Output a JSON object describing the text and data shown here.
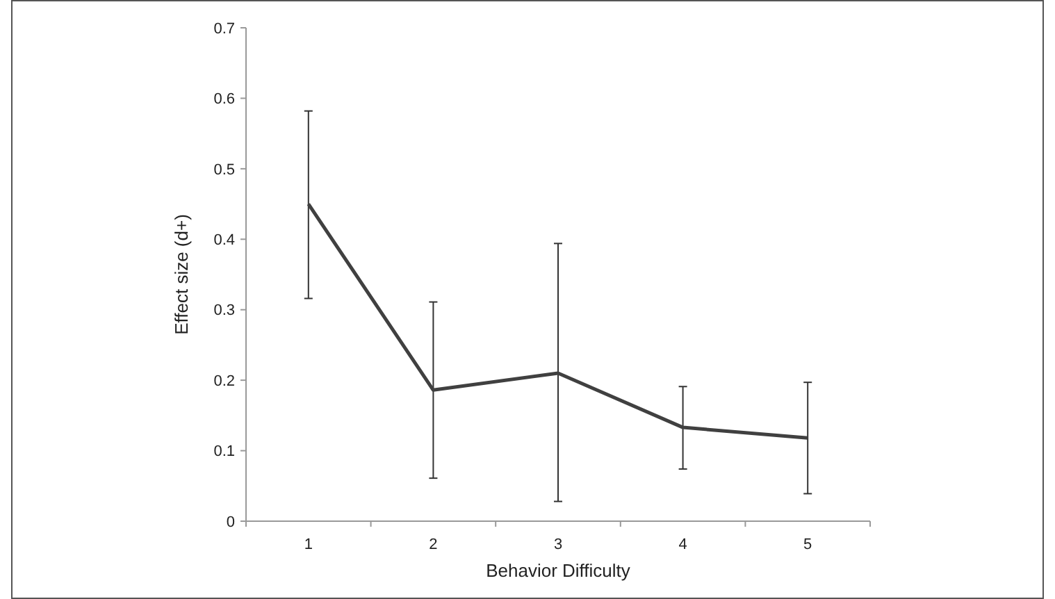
{
  "chart_data": {
    "type": "line",
    "xlabel": "Behavior Difficulty",
    "ylabel": "Effect size (d+)",
    "categories": [
      "1",
      "2",
      "3",
      "4",
      "5"
    ],
    "series": [
      {
        "color": "#404040",
        "values": [
          0.45,
          0.186,
          0.21,
          0.133,
          0.118
        ],
        "errors": [
          [
            0.316,
            0.582
          ],
          [
            0.061,
            0.311
          ],
          [
            0.028,
            0.394
          ],
          [
            0.074,
            0.191
          ],
          [
            0.039,
            0.197
          ]
        ]
      }
    ],
    "ylim": [
      0,
      0.7
    ],
    "yticks": [
      0,
      0.1,
      0.2,
      0.3,
      0.4,
      0.5,
      0.6,
      0.7
    ],
    "grid": false,
    "marker": "none",
    "line_style": "solid"
  }
}
